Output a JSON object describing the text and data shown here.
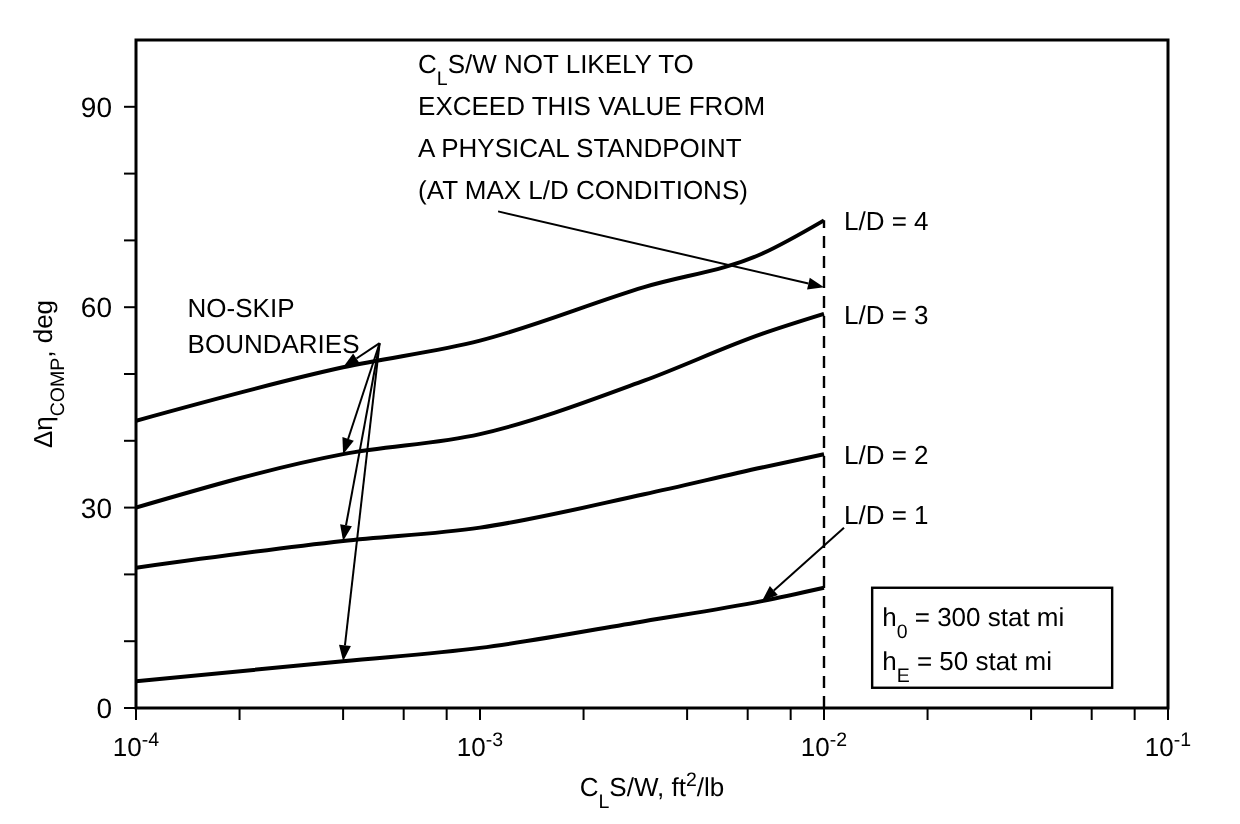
{
  "chart_data": {
    "type": "line",
    "xlabel": "C$_{L}$S/W, ft$^{2}$/lb",
    "ylabel": "Δη$_{COMP}$, deg",
    "log": "x",
    "marker": "none",
    "xlim": [
      0.0001,
      0.1
    ],
    "xticks": [
      {
        "value": 0.0001,
        "label": "10$^{-4}$"
      },
      {
        "value": 0.0002,
        "label": null
      },
      {
        "value": 0.0004,
        "label": null
      },
      {
        "value": 0.0006,
        "label": null
      },
      {
        "value": 0.0008,
        "label": null
      },
      {
        "value": 0.001,
        "label": "10$^{-3}$"
      },
      {
        "value": 0.002,
        "label": null
      },
      {
        "value": 0.004,
        "label": null
      },
      {
        "value": 0.006,
        "label": null
      },
      {
        "value": 0.008,
        "label": null
      },
      {
        "value": 0.01,
        "label": "10$^{-2}$"
      },
      {
        "value": 0.02,
        "label": null
      },
      {
        "value": 0.04,
        "label": null
      },
      {
        "value": 0.06,
        "label": null
      },
      {
        "value": 0.08,
        "label": null
      },
      {
        "value": 0.1,
        "label": "10$^{-1}$"
      }
    ],
    "ylim": [
      0,
      100
    ],
    "yticks": [
      0,
      {
        "value": 10,
        "label": null
      },
      {
        "value": 20,
        "label": null
      },
      30,
      {
        "value": 40,
        "label": null
      },
      {
        "value": 50,
        "label": null
      },
      60,
      {
        "value": 70,
        "label": null
      },
      {
        "value": 80,
        "label": null
      },
      90
    ],
    "series": [
      {
        "name": "L/D = 4",
        "color": "#000000",
        "x": [
          0.0001,
          0.0004,
          0.001,
          0.003,
          0.0066,
          0.01
        ],
        "values": [
          43,
          51,
          55,
          63,
          68,
          73
        ]
      },
      {
        "name": "L/D = 3",
        "color": "#000000",
        "x": [
          0.0001,
          0.0004,
          0.001,
          0.003,
          0.0066,
          0.01
        ],
        "values": [
          30,
          38,
          41,
          49,
          56,
          59
        ]
      },
      {
        "name": "L/D = 2",
        "color": "#000000",
        "x": [
          0.0001,
          0.0004,
          0.001,
          0.003,
          0.0066,
          0.01
        ],
        "values": [
          21,
          25,
          27,
          32,
          36,
          38
        ]
      },
      {
        "name": "L/D = 1",
        "color": "#000000",
        "x": [
          0.0001,
          0.0004,
          0.001,
          0.003,
          0.0066,
          0.01
        ],
        "values": [
          4,
          7,
          9,
          13,
          16,
          18
        ]
      }
    ],
    "ref_lines": [
      {
        "axis": "x",
        "value": 0.01,
        "color": "#000000",
        "line_style": "dashed"
      }
    ],
    "annotations": [
      {
        "text": "C$_{L}$S/W NOT LIKELY TO EXCEED THIS VALUE FROM A PHYSICAL STANDPOINT (AT MAX L/D CONDITIONS)",
        "x": 0.01,
        "y": 63
      },
      "NO-SKIP BOUNDARIES",
      "h$_{0}$ = 300 stat mi",
      "h$_{E}$ = 50 stat mi"
    ]
  }
}
